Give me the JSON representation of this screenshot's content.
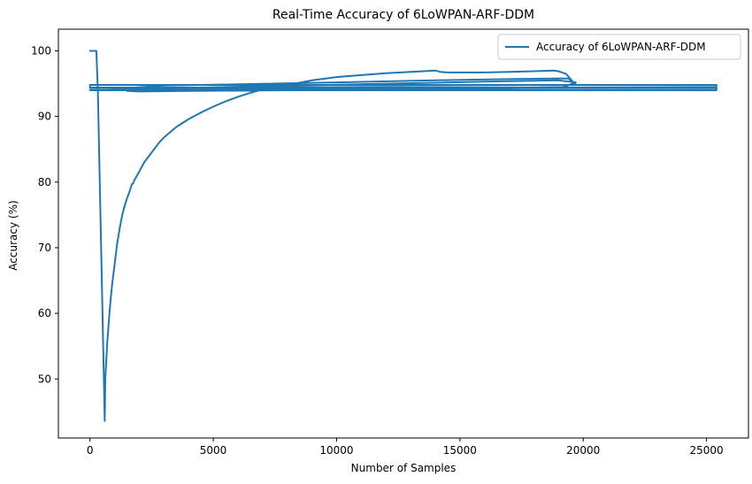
{
  "chart_data": {
    "type": "line",
    "title": "Real-Time Accuracy of 6LoWPAN-ARF-DDM",
    "xlabel": "Number of Samples",
    "ylabel": "Accuracy (%)",
    "xlim": [
      -1280,
      26700
    ],
    "ylim": [
      41.0,
      103.3
    ],
    "xticks": [
      0,
      5000,
      10000,
      15000,
      20000,
      25000
    ],
    "yticks": [
      50,
      60,
      70,
      80,
      90,
      100
    ],
    "grid": false,
    "legend_position": "top-right",
    "colors": {
      "series": "#1f77b4",
      "axes": "#000000"
    },
    "series": [
      {
        "name": "Accuracy of 6LoWPAN-ARF-DDM",
        "x": [
          0,
          260,
          320,
          600,
          620,
          700,
          800,
          900,
          1000,
          1100,
          1200,
          1300,
          1400,
          1500,
          1600,
          1700,
          1750,
          1800,
          2000,
          2200,
          2500,
          2800,
          3000,
          3500,
          4000,
          4500,
          5000,
          5500,
          6000,
          6500,
          7000,
          8000,
          9000,
          10000,
          11000,
          12000,
          13000,
          14000,
          14200,
          14500,
          15000,
          16000,
          17000,
          18000,
          18800,
          19000,
          19300,
          19700,
          19400,
          17000,
          14000,
          10000,
          6000,
          3000,
          1000,
          600,
          1000,
          3000,
          7000,
          12000,
          16000,
          19000,
          19700,
          19200,
          16000,
          12000,
          8000,
          4000,
          2000,
          1500,
          2000,
          6000,
          12000,
          18000,
          25400,
          25400,
          19000,
          12000,
          5000,
          0,
          0,
          6000,
          12000,
          19000,
          25400,
          25400,
          19000,
          12000,
          6000,
          0,
          0,
          6000,
          12000,
          19000,
          25400
        ],
        "y": [
          100,
          100,
          94.0,
          43.6,
          50,
          55.5,
          60.5,
          64.5,
          67.5,
          70.5,
          72.8,
          74.8,
          76.3,
          77.5,
          78.5,
          79.7,
          79.8,
          80.3,
          81.6,
          83.0,
          84.5,
          86.0,
          86.8,
          88.4,
          89.6,
          90.6,
          91.5,
          92.3,
          93.0,
          93.6,
          94.1,
          94.8,
          95.5,
          96.0,
          96.3,
          96.6,
          96.8,
          97.0,
          96.8,
          96.7,
          96.7,
          96.7,
          96.8,
          96.9,
          97.0,
          96.9,
          96.5,
          94.8,
          95.8,
          95.7,
          95.5,
          95.2,
          94.9,
          94.7,
          94.2,
          94.0,
          94.1,
          94.3,
          94.6,
          95.0,
          95.3,
          95.5,
          95.2,
          94.5,
          94.3,
          94.1,
          94.0,
          93.9,
          93.8,
          93.9,
          94.0,
          94.2,
          94.3,
          94.4,
          94.5,
          94.8,
          94.8,
          94.8,
          94.8,
          94.8,
          94.4,
          94.4,
          94.5,
          94.4,
          94.4,
          94.1,
          94.1,
          94.1,
          94.1,
          94.1,
          94.0,
          94.0,
          94.0,
          94.0,
          94.0
        ]
      }
    ]
  }
}
